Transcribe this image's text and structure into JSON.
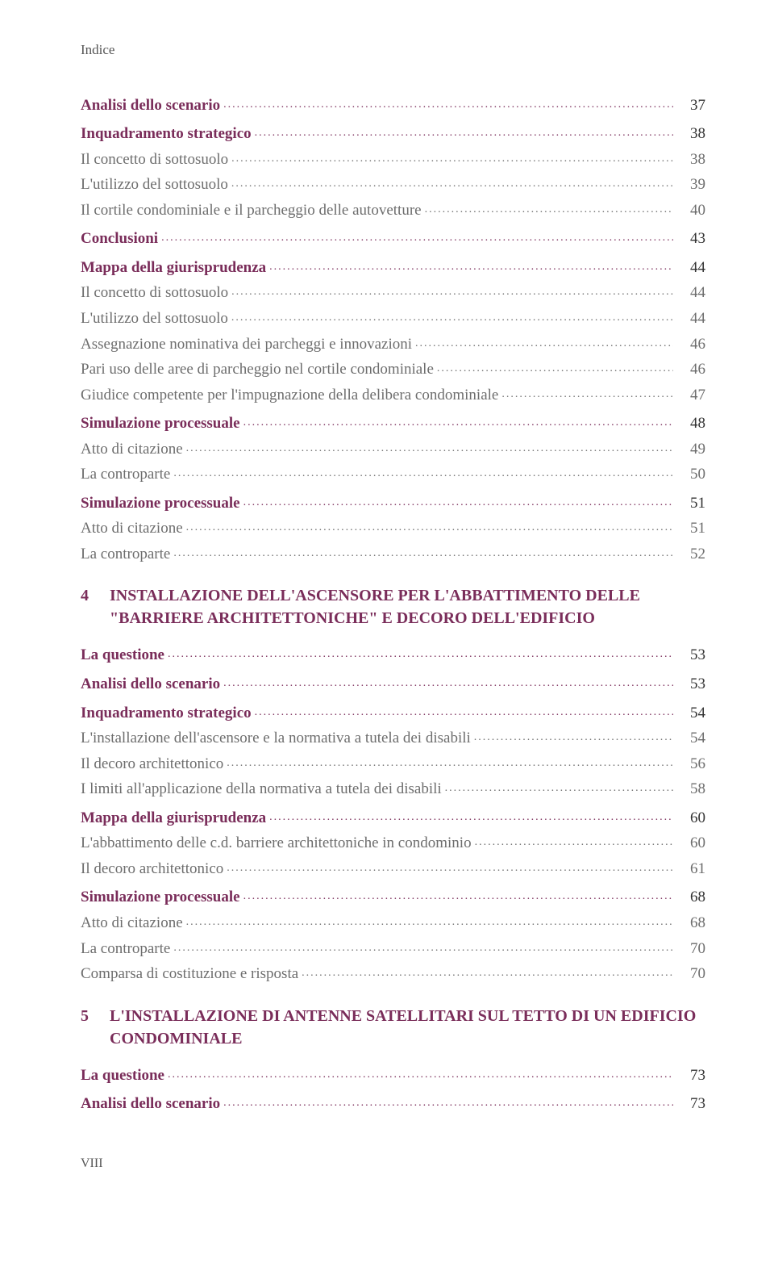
{
  "header": {
    "label": "Indice"
  },
  "colors": {
    "heading": "#7a2d5a",
    "body": "#333333",
    "light": "#6d6d6d",
    "background": "#ffffff"
  },
  "typography": {
    "body_fontsize_pt": 14,
    "chapter_fontsize_pt": 15,
    "font_family": "serif"
  },
  "toc": [
    {
      "text": "Analisi dello scenario",
      "page": "37",
      "bold": true,
      "heading": true,
      "gap": "none"
    },
    {
      "text": "Inquadramento strategico",
      "page": "38",
      "bold": true,
      "heading": true,
      "gap": "small"
    },
    {
      "text": "Il concetto di sottosuolo",
      "page": "38",
      "light": true
    },
    {
      "text": "L'utilizzo del sottosuolo",
      "page": "39",
      "light": true
    },
    {
      "text": "Il cortile condominiale e il parcheggio delle autovetture",
      "page": "40",
      "light": true
    },
    {
      "text": "Conclusioni",
      "page": "43",
      "bold": true,
      "heading": true,
      "gap": "small"
    },
    {
      "text": "Mappa della giurisprudenza",
      "page": "44",
      "bold": true,
      "heading": true,
      "gap": "small"
    },
    {
      "text": "Il concetto di sottosuolo",
      "page": "44",
      "light": true
    },
    {
      "text": "L'utilizzo del sottosuolo",
      "page": "44",
      "light": true
    },
    {
      "text": "Assegnazione nominativa dei parcheggi e innovazioni",
      "page": "46",
      "light": true
    },
    {
      "text": "Pari uso delle aree di parcheggio nel cortile condominiale",
      "page": "46",
      "light": true
    },
    {
      "text": "Giudice competente per l'impugnazione della delibera condominiale",
      "page": "47",
      "light": true
    },
    {
      "text": "Simulazione processuale",
      "page": "48",
      "bold": true,
      "heading": true,
      "gap": "small"
    },
    {
      "text": "Atto di citazione",
      "page": "49",
      "light": true
    },
    {
      "text": "La controparte",
      "page": "50",
      "light": true
    },
    {
      "text": "Simulazione processuale",
      "page": "51",
      "bold": true,
      "heading": true,
      "gap": "small"
    },
    {
      "text": "Atto di citazione",
      "page": "51",
      "light": true
    },
    {
      "text": "La controparte",
      "page": "52",
      "light": true
    }
  ],
  "chapter4": {
    "num": "4",
    "title_line1": "INSTALLAZIONE DELL'ASCENSORE PER L'ABBATTIMENTO DELLE",
    "title_line2": "\"BARRIERE ARCHITETTONICHE\" E DECORO DELL'EDIFICIO"
  },
  "toc2": [
    {
      "text": "La questione",
      "page": "53",
      "bold": true,
      "heading": true
    },
    {
      "text": "Analisi dello scenario",
      "page": "53",
      "bold": true,
      "heading": true,
      "gap": "small"
    },
    {
      "text": "Inquadramento strategico",
      "page": "54",
      "bold": true,
      "heading": true,
      "gap": "small"
    },
    {
      "text": "L'installazione dell'ascensore e la normativa a tutela dei disabili",
      "page": "54",
      "light": true
    },
    {
      "text": "Il decoro architettonico",
      "page": "56",
      "light": true
    },
    {
      "text": "I limiti all'applicazione della normativa a tutela dei disabili",
      "page": "58",
      "light": true
    },
    {
      "text": "Mappa della giurisprudenza",
      "page": "60",
      "bold": true,
      "heading": true,
      "gap": "small"
    },
    {
      "text": "L'abbattimento delle c.d. barriere architettoniche in condominio",
      "page": "60",
      "light": true
    },
    {
      "text": "Il decoro architettonico",
      "page": "61",
      "light": true
    },
    {
      "text": "Simulazione processuale",
      "page": "68",
      "bold": true,
      "heading": true,
      "gap": "small"
    },
    {
      "text": "Atto di citazione",
      "page": "68",
      "light": true
    },
    {
      "text": "La controparte",
      "page": "70",
      "light": true
    },
    {
      "text": "Comparsa di costituzione e risposta",
      "page": "70",
      "light": true
    }
  ],
  "chapter5": {
    "num": "5",
    "title_line1": "L'INSTALLAZIONE DI ANTENNE SATELLITARI SUL TETTO DI UN EDIFICIO",
    "title_line2": "CONDOMINIALE"
  },
  "toc3": [
    {
      "text": "La questione",
      "page": "73",
      "bold": true,
      "heading": true
    },
    {
      "text": "Analisi dello scenario",
      "page": "73",
      "bold": true,
      "heading": true,
      "gap": "small"
    }
  ],
  "footer": {
    "page_num": "VIII"
  }
}
